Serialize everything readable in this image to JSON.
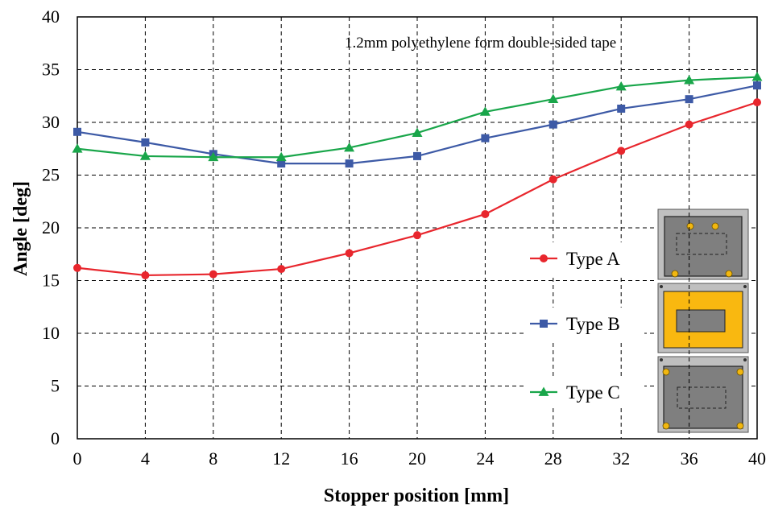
{
  "chart_data": {
    "type": "line",
    "title": "",
    "annotation": "1.2mm polyethylene form double-sided tape",
    "xlabel": "Stopper position [mm]",
    "ylabel": "Angle [deg]",
    "x": [
      0,
      4,
      8,
      12,
      16,
      20,
      24,
      28,
      32,
      36,
      40
    ],
    "xlim": [
      0,
      40
    ],
    "ylim": [
      0,
      40
    ],
    "x_ticks": [
      "0",
      "4",
      "8",
      "12",
      "16",
      "20",
      "24",
      "28",
      "32",
      "36",
      "40"
    ],
    "y_ticks": [
      "0",
      "5",
      "10",
      "15",
      "20",
      "25",
      "30",
      "35",
      "40"
    ],
    "grid": true,
    "legend_position": "right",
    "series": [
      {
        "name": "Type A",
        "marker": "circle",
        "color": "#e8262d",
        "values": [
          16.2,
          15.5,
          15.6,
          16.1,
          17.6,
          19.3,
          21.3,
          24.6,
          27.3,
          29.8,
          31.9
        ]
      },
      {
        "name": "Type B",
        "marker": "square",
        "color": "#3d5aa6",
        "values": [
          29.1,
          28.1,
          27.0,
          26.1,
          26.1,
          26.8,
          28.5,
          29.8,
          31.3,
          32.2,
          33.5
        ]
      },
      {
        "name": "Type C",
        "marker": "triangle",
        "color": "#19a64a",
        "values": [
          27.5,
          26.8,
          26.7,
          26.7,
          27.6,
          29.0,
          31.0,
          32.2,
          33.4,
          34.0,
          34.3
        ]
      }
    ],
    "inset_icons": [
      "type-a-plate-icon",
      "type-b-plate-icon",
      "type-c-plate-icon"
    ],
    "inset_colors": {
      "plate": "#7f7f7f",
      "frame": "#bfbfbf",
      "tape": "#f9b810",
      "screw": "#f2b70f"
    }
  }
}
